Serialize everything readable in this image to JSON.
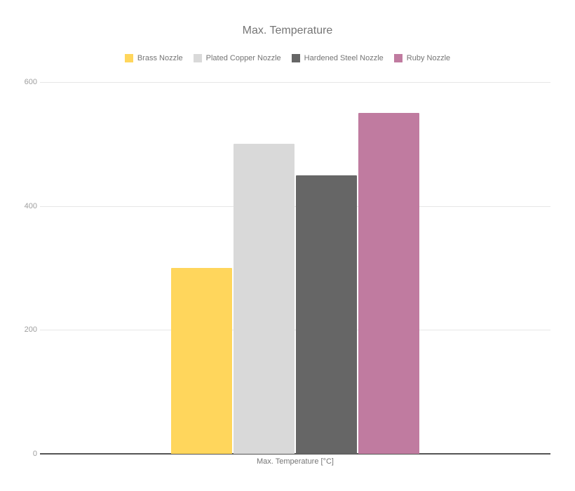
{
  "page": {
    "background_color": "#ffffff"
  },
  "chart_data": {
    "type": "bar",
    "title": "Max. Temperature",
    "xlabel": "Max. Temperature [°C]",
    "ylabel": "",
    "categories": [
      "Max. Temperature [°C]"
    ],
    "series": [
      {
        "name": "Brass Nozzle",
        "values": [
          300
        ],
        "color": "#FFD65C"
      },
      {
        "name": "Plated Copper Nozzle",
        "values": [
          500
        ],
        "color": "#D9D9D9"
      },
      {
        "name": "Hardened Steel Nozzle",
        "values": [
          450
        ],
        "color": "#666666"
      },
      {
        "name": "Ruby Nozzle",
        "values": [
          550
        ],
        "color": "#C07BA0"
      }
    ],
    "ylim": [
      0,
      600
    ],
    "yticks": [
      0,
      200,
      400,
      600
    ],
    "grid": true,
    "legend_position": "top"
  },
  "styles": {
    "title_color": "#757575",
    "legend_text_color": "#757575",
    "tick_label_color": "#9e9e9e",
    "axis_title_color": "#757575",
    "gridline_color": "#e6e6e6",
    "baseline_color": "#555555"
  }
}
